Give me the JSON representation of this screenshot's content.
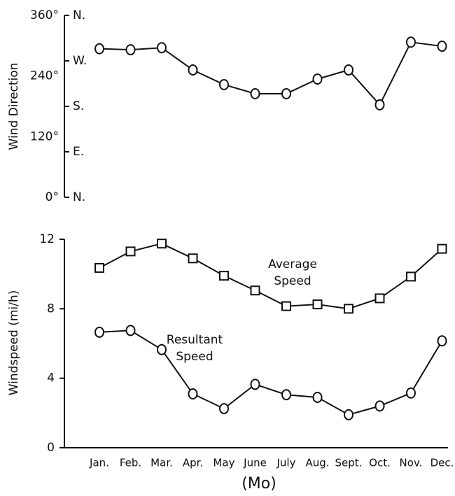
{
  "chart_data": [
    {
      "type": "line",
      "ylabel": "Wind Direction",
      "categories": [
        "Jan.",
        "Feb.",
        "Mar.",
        "Apr.",
        "May",
        "June",
        "July",
        "Aug.",
        "Sept.",
        "Oct.",
        "Nov.",
        "Dec."
      ],
      "ylim": [
        0,
        360
      ],
      "yticks": [
        {
          "value": 0,
          "label": "0°"
        },
        {
          "value": 120,
          "label": "120°"
        },
        {
          "value": 240,
          "label": "240°"
        },
        {
          "value": 360,
          "label": "360°"
        }
      ],
      "direction_ticks": [
        {
          "value": 360,
          "label": "N."
        },
        {
          "value": 270,
          "label": "W."
        },
        {
          "value": 180,
          "label": "S."
        },
        {
          "value": 90,
          "label": "E."
        },
        {
          "value": 0,
          "label": "N."
        }
      ],
      "series": [
        {
          "color": "#111111",
          "marker": "circle",
          "values": [
            294,
            292,
            296,
            252,
            223,
            205,
            205,
            234,
            252,
            183,
            307,
            299
          ]
        }
      ]
    },
    {
      "type": "line",
      "ylabel": "Windspeed   (mi/h)",
      "xlabel": "(Mo)",
      "categories": [
        "Jan.",
        "Feb.",
        "Mar.",
        "Apr.",
        "May",
        "June",
        "July",
        "Aug.",
        "Sept.",
        "Oct.",
        "Nov.",
        "Dec."
      ],
      "ylim": [
        0,
        12
      ],
      "yticks": [
        0,
        4,
        8,
        12
      ],
      "series": [
        {
          "name": "Average Speed",
          "color": "#111111",
          "marker": "square",
          "values": [
            10.35,
            11.3,
            11.75,
            10.9,
            9.9,
            9.05,
            8.15,
            8.25,
            8.0,
            8.6,
            9.85,
            11.45
          ]
        },
        {
          "name": "Resultant Speed",
          "color": "#111111",
          "marker": "circle",
          "values": [
            6.65,
            6.75,
            5.65,
            3.1,
            2.25,
            3.65,
            3.05,
            2.9,
            1.9,
            2.4,
            3.15,
            6.15
          ]
        }
      ]
    }
  ]
}
